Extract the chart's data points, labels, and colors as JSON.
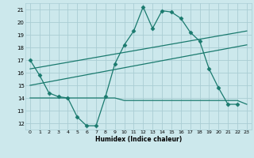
{
  "xlabel": "Humidex (Indice chaleur)",
  "bg_color": "#cce8ec",
  "grid_color": "#aacdd4",
  "line_color": "#1a7a6e",
  "xlim": [
    -0.5,
    23.5
  ],
  "ylim": [
    11.5,
    21.5
  ],
  "yticks": [
    12,
    13,
    14,
    15,
    16,
    17,
    18,
    19,
    20,
    21
  ],
  "xticks": [
    0,
    1,
    2,
    3,
    4,
    5,
    6,
    7,
    8,
    9,
    10,
    11,
    12,
    13,
    14,
    15,
    16,
    17,
    18,
    19,
    20,
    21,
    22,
    23
  ],
  "series": [
    {
      "x": [
        0,
        1,
        2,
        3,
        4,
        5,
        6,
        7,
        8,
        9,
        10,
        11,
        12,
        13,
        14,
        15,
        16,
        17,
        18,
        19,
        20,
        21,
        22
      ],
      "y": [
        17.0,
        15.8,
        14.4,
        14.1,
        14.0,
        12.5,
        11.8,
        11.8,
        14.1,
        16.7,
        18.2,
        19.3,
        21.2,
        19.5,
        20.9,
        20.8,
        20.3,
        19.2,
        18.5,
        16.3,
        14.8,
        13.5,
        13.5
      ],
      "marker": "D",
      "markersize": 2.5,
      "linewidth": 0.9
    },
    {
      "x": [
        0,
        1,
        2,
        3,
        4,
        5,
        6,
        7,
        8,
        9,
        10,
        11,
        12,
        13,
        14,
        15,
        16,
        17,
        18,
        19,
        20,
        21,
        22,
        23
      ],
      "y": [
        14.0,
        14.0,
        14.0,
        14.0,
        14.0,
        14.0,
        14.0,
        14.0,
        14.0,
        14.0,
        13.8,
        13.8,
        13.8,
        13.8,
        13.8,
        13.8,
        13.8,
        13.8,
        13.8,
        13.8,
        13.8,
        13.8,
        13.8,
        13.5
      ],
      "marker": null,
      "markersize": 0,
      "linewidth": 0.9
    },
    {
      "x": [
        0,
        23
      ],
      "y": [
        15.0,
        18.2
      ],
      "marker": null,
      "markersize": 0,
      "linewidth": 0.9
    },
    {
      "x": [
        0,
        23
      ],
      "y": [
        16.3,
        19.3
      ],
      "marker": null,
      "markersize": 0,
      "linewidth": 0.9
    }
  ]
}
